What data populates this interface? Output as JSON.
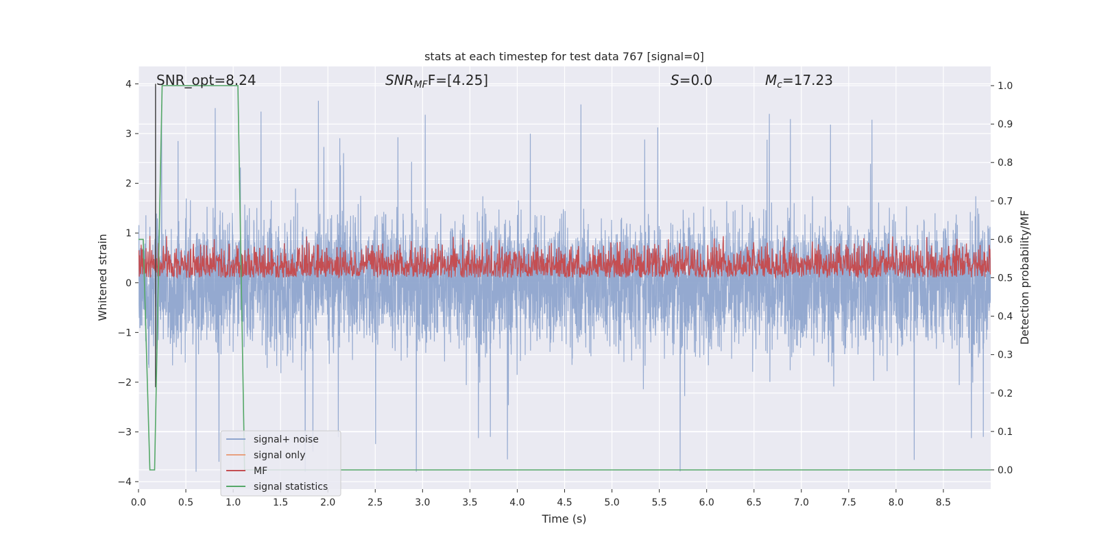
{
  "chart_data": {
    "type": "line",
    "title": "stats at each timestep for test data 767 [signal=0]",
    "xlabel": "Time (s)",
    "ylabel_left": "Whitened strain",
    "ylabel_right": "Detection probability/MF",
    "xlim": [
      0,
      9
    ],
    "ylim_left": [
      -4.15,
      4.35
    ],
    "ylim_right": [
      -0.05,
      1.05
    ],
    "x_ticks": [
      "0.0",
      "0.5",
      "1.0",
      "1.5",
      "2.0",
      "2.5",
      "3.0",
      "3.5",
      "4.0",
      "4.5",
      "5.0",
      "5.5",
      "6.0",
      "6.5",
      "7.0",
      "7.5",
      "8.0",
      "8.5"
    ],
    "y_left_ticks": [
      "4",
      "3",
      "2",
      "1",
      "0",
      "−1",
      "−2",
      "−3",
      "−4"
    ],
    "y_right_ticks": [
      "1.0",
      "0.9",
      "0.8",
      "0.7",
      "0.6",
      "0.5",
      "0.4",
      "0.3",
      "0.2",
      "0.1",
      "0.0"
    ],
    "grid": true,
    "legend_placement": "lower-left",
    "annotations": {
      "snr_opt": "SNR_opt=8.24",
      "snr_mf_main": "SNR",
      "snr_mf_sub": "MF",
      "snr_mf_value": "F=[4.25]",
      "s_main": "S",
      "s_value": "=0.0",
      "mc_main": "M",
      "mc_sub": "c",
      "mc_value": "=17.23"
    },
    "series": [
      {
        "name": "signal+ noise",
        "color": "#8fa5ce",
        "axis": "left",
        "noise_envelope_approx": {
          "upper_typical": 1.5,
          "upper_peak": 4.0,
          "lower_typical": -1.5,
          "lower_peak": -3.8,
          "sample_spacing_s": 0.002
        }
      },
      {
        "name": "signal only",
        "color": "#e8a07f",
        "axis": "left",
        "values": []
      },
      {
        "name": "MF",
        "color": "#c44e52",
        "axis": "right",
        "range_approx": [
          0.5,
          0.6
        ],
        "peak": 0.61
      },
      {
        "name": "signal statistics",
        "color": "#55a868",
        "axis": "right",
        "x": [
          0.0,
          0.05,
          0.12,
          0.17,
          0.25,
          1.05,
          1.12,
          9.0
        ],
        "values": [
          0.6,
          0.6,
          0.0,
          0.0,
          1.0,
          1.0,
          0.0,
          0.0
        ]
      }
    ],
    "vertical_marker": {
      "x": 0.18,
      "y_range": [
        -2.1,
        4.0
      ],
      "color": "#444444"
    }
  }
}
